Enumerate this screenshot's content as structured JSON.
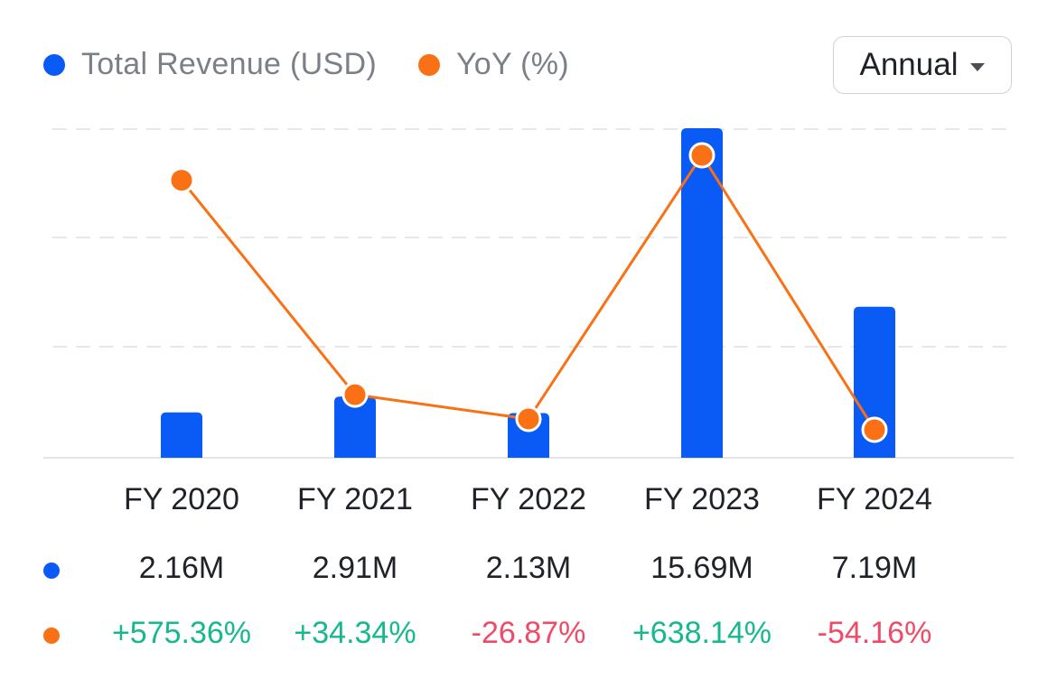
{
  "legend": {
    "revenue_label": "Total Revenue (USD)",
    "yoy_label": "YoY (%)"
  },
  "period_selector": {
    "selected": "Annual"
  },
  "colors": {
    "revenue": "#0a5af5",
    "yoy": "#fa7014",
    "positive": "#17b890",
    "negative": "#ef4b68",
    "grid": "#e6e7ea"
  },
  "chart_data": {
    "type": "bar",
    "categories": [
      "FY 2020",
      "FY 2021",
      "FY 2022",
      "FY 2023",
      "FY 2024"
    ],
    "series": [
      {
        "name": "Total Revenue (USD)",
        "type": "bar",
        "values": [
          2.16,
          2.91,
          2.13,
          15.69,
          7.19
        ],
        "unit": "M"
      },
      {
        "name": "YoY (%)",
        "type": "line",
        "values": [
          575.36,
          34.34,
          -26.87,
          638.14,
          -54.16
        ]
      }
    ],
    "value_labels": {
      "revenue": [
        "2.16M",
        "2.91M",
        "2.13M",
        "15.69M",
        "7.19M"
      ],
      "yoy": [
        "+575.36%",
        "+34.34%",
        "-26.87%",
        "+638.14%",
        "-54.16%"
      ]
    },
    "grid": true
  }
}
